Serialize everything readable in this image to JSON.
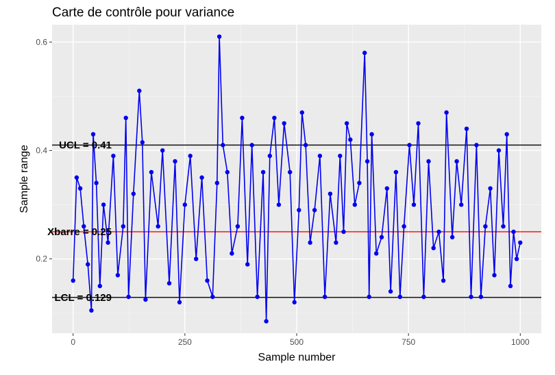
{
  "chart_data": {
    "type": "line",
    "title": "Carte de contrôle pour variance",
    "xlabel": "Sample number",
    "ylabel": "Sample range",
    "xlim": [
      -47,
      1047
    ],
    "ylim": [
      0.063,
      0.632
    ],
    "x_ticks": [
      0,
      250,
      500,
      750,
      1000
    ],
    "x_tick_labels": [
      "0",
      "250",
      "500",
      "750",
      "1000"
    ],
    "y_ticks": [
      0.2,
      0.4,
      0.6
    ],
    "y_tick_labels": [
      "0.2",
      "0.4",
      "0.6"
    ],
    "grid": true,
    "n_points": 1000,
    "series": [
      {
        "color": "#0000ee",
        "points": [
          [
            0,
            0.16
          ],
          [
            8,
            0.35
          ],
          [
            16,
            0.33
          ],
          [
            24,
            0.26
          ],
          [
            33,
            0.19
          ],
          [
            41,
            0.105
          ],
          [
            45,
            0.43
          ],
          [
            52,
            0.34
          ],
          [
            60,
            0.15
          ],
          [
            68,
            0.3
          ],
          [
            78,
            0.23
          ],
          [
            90,
            0.39
          ],
          [
            100,
            0.17
          ],
          [
            112,
            0.26
          ],
          [
            118,
            0.46
          ],
          [
            124,
            0.13
          ],
          [
            135,
            0.32
          ],
          [
            148,
            0.51
          ],
          [
            155,
            0.415
          ],
          [
            162,
            0.125
          ],
          [
            175,
            0.36
          ],
          [
            190,
            0.26
          ],
          [
            200,
            0.4
          ],
          [
            215,
            0.155
          ],
          [
            228,
            0.38
          ],
          [
            238,
            0.12
          ],
          [
            250,
            0.3
          ],
          [
            262,
            0.39
          ],
          [
            275,
            0.2
          ],
          [
            288,
            0.35
          ],
          [
            300,
            0.16
          ],
          [
            312,
            0.13
          ],
          [
            322,
            0.34
          ],
          [
            327,
            0.61
          ],
          [
            335,
            0.41
          ],
          [
            345,
            0.36
          ],
          [
            355,
            0.21
          ],
          [
            368,
            0.26
          ],
          [
            378,
            0.46
          ],
          [
            390,
            0.19
          ],
          [
            400,
            0.41
          ],
          [
            412,
            0.13
          ],
          [
            425,
            0.36
          ],
          [
            432,
            0.085
          ],
          [
            440,
            0.39
          ],
          [
            450,
            0.46
          ],
          [
            460,
            0.3
          ],
          [
            472,
            0.45
          ],
          [
            485,
            0.36
          ],
          [
            495,
            0.12
          ],
          [
            505,
            0.29
          ],
          [
            512,
            0.47
          ],
          [
            520,
            0.41
          ],
          [
            530,
            0.23
          ],
          [
            540,
            0.29
          ],
          [
            552,
            0.39
          ],
          [
            563,
            0.13
          ],
          [
            575,
            0.32
          ],
          [
            588,
            0.23
          ],
          [
            597,
            0.39
          ],
          [
            605,
            0.25
          ],
          [
            612,
            0.45
          ],
          [
            620,
            0.42
          ],
          [
            630,
            0.3
          ],
          [
            640,
            0.34
          ],
          [
            652,
            0.58
          ],
          [
            658,
            0.38
          ],
          [
            662,
            0.13
          ],
          [
            668,
            0.43
          ],
          [
            678,
            0.21
          ],
          [
            690,
            0.24
          ],
          [
            702,
            0.33
          ],
          [
            710,
            0.14
          ],
          [
            722,
            0.36
          ],
          [
            731,
            0.13
          ],
          [
            740,
            0.26
          ],
          [
            752,
            0.41
          ],
          [
            762,
            0.3
          ],
          [
            772,
            0.45
          ],
          [
            784,
            0.13
          ],
          [
            795,
            0.38
          ],
          [
            806,
            0.22
          ],
          [
            818,
            0.25
          ],
          [
            828,
            0.16
          ],
          [
            835,
            0.47
          ],
          [
            848,
            0.24
          ],
          [
            858,
            0.38
          ],
          [
            868,
            0.3
          ],
          [
            880,
            0.44
          ],
          [
            890,
            0.13
          ],
          [
            902,
            0.41
          ],
          [
            912,
            0.13
          ],
          [
            922,
            0.26
          ],
          [
            933,
            0.33
          ],
          [
            942,
            0.17
          ],
          [
            952,
            0.4
          ],
          [
            962,
            0.26
          ],
          [
            970,
            0.43
          ],
          [
            978,
            0.15
          ],
          [
            985,
            0.25
          ],
          [
            992,
            0.2
          ],
          [
            1000,
            0.23
          ]
        ]
      }
    ],
    "reference_lines": [
      {
        "y": 0.41,
        "label": "UCL =  0.41",
        "color": "#000000"
      },
      {
        "y": 0.25,
        "label": "Xbarre =  0.25",
        "color": "#ff0000"
      },
      {
        "y": 0.129,
        "label": "LCL =  0.129",
        "color": "#000000"
      }
    ],
    "colors": {
      "panel_background": "#ebebeb",
      "grid_major": "#ffffff",
      "grid_minor": "#f4f4f4",
      "axis_text": "#4d4d4d",
      "axis_title": "#000000"
    }
  }
}
